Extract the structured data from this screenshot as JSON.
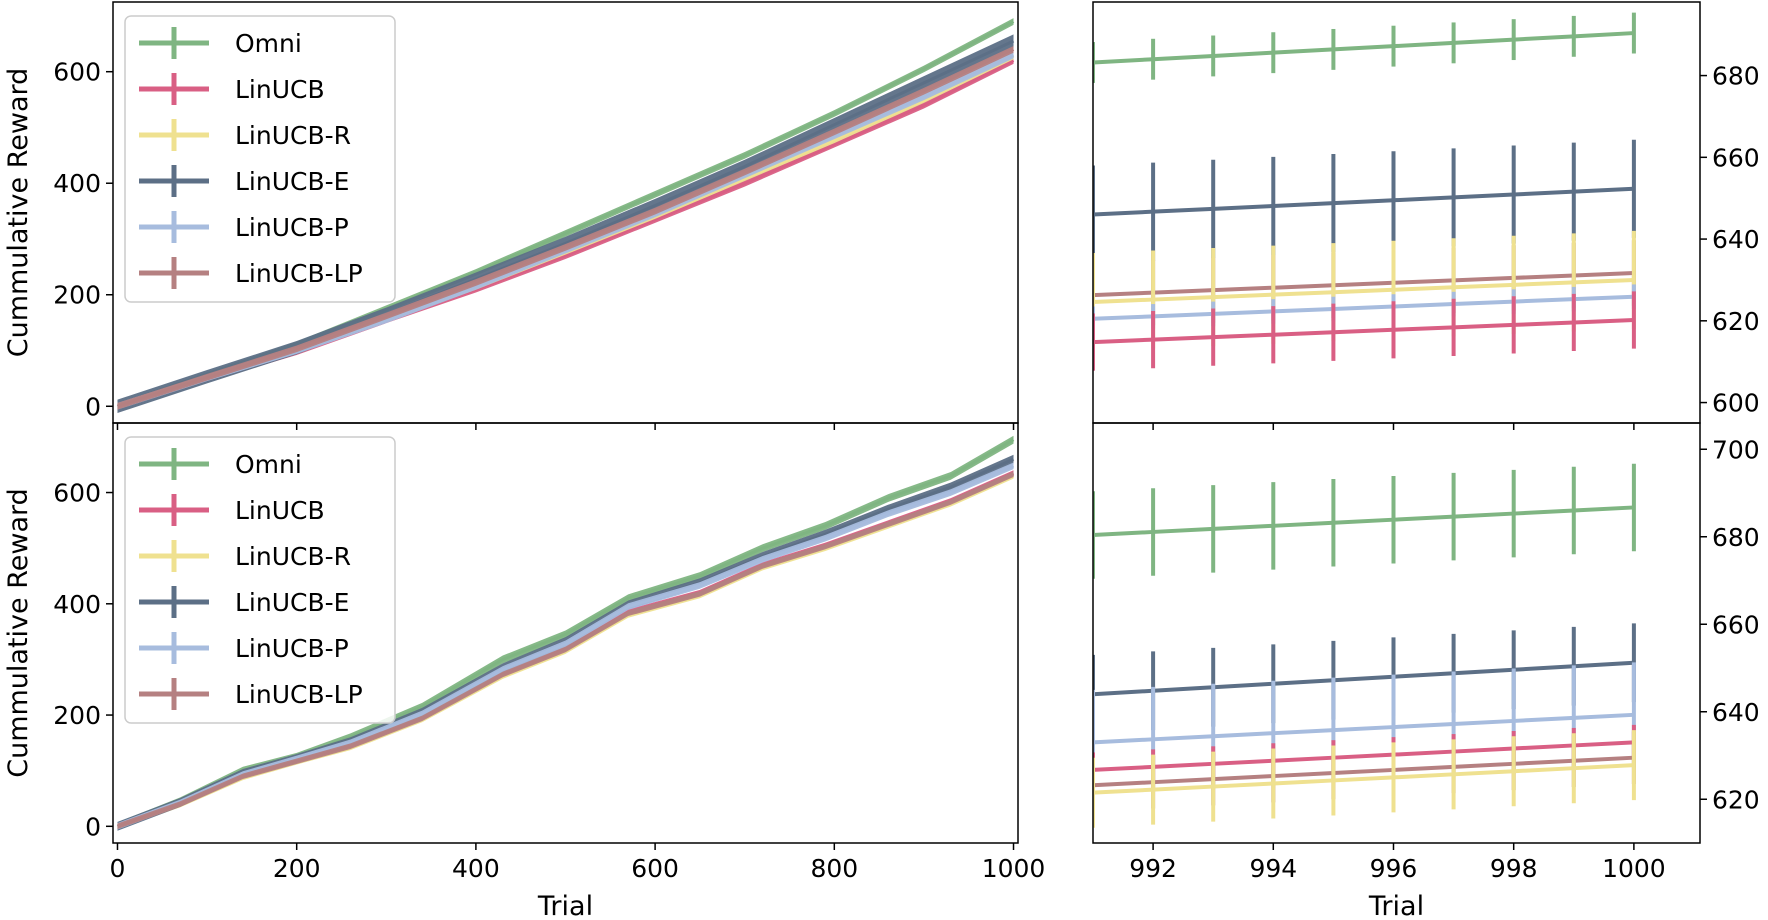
{
  "colors": {
    "omni": "#7fb582",
    "linucb": "#d95f84",
    "linucb_r": "#efe190",
    "linucb_e": "#5c6f86",
    "linucb_p": "#a7bcde",
    "linucb_lp": "#b58081"
  },
  "legend": [
    "Omni",
    "LinUCB",
    "LinUCB-R",
    "LinUCB-E",
    "LinUCB-P",
    "LinUCB-LP"
  ],
  "chart_data": [
    {
      "id": "top-left",
      "type": "line",
      "xlabel": "",
      "ylabel": "Cummulative Reward",
      "xlim": [
        -5,
        1005
      ],
      "ylim": [
        -30,
        725
      ],
      "xticks": [
        0,
        200,
        400,
        600,
        800,
        1000
      ],
      "yticks": [
        0,
        200,
        400,
        600
      ],
      "xtick_labels_visible": false,
      "legend_position": "top-left",
      "series": [
        {
          "name": "Omni",
          "key": "omni",
          "x": [
            0,
            100,
            200,
            300,
            400,
            500,
            600,
            700,
            800,
            900,
            1000
          ],
          "y": [
            0,
            55,
            110,
            175,
            240,
            310,
            380,
            450,
            525,
            605,
            690
          ],
          "band": 6
        },
        {
          "name": "LinUCB",
          "key": "linucb",
          "x": [
            0,
            100,
            200,
            300,
            400,
            500,
            600,
            700,
            800,
            900,
            1000
          ],
          "y": [
            0,
            50,
            98,
            155,
            210,
            270,
            335,
            400,
            470,
            540,
            620
          ],
          "band": 6
        },
        {
          "name": "LinUCB-R",
          "key": "linucb_r",
          "x": [
            0,
            100,
            200,
            300,
            400,
            500,
            600,
            700,
            800,
            900,
            1000
          ],
          "y": [
            0,
            51,
            100,
            158,
            215,
            278,
            342,
            410,
            478,
            550,
            628
          ],
          "band": 6
        },
        {
          "name": "LinUCB-E",
          "key": "linucb_e",
          "x": [
            0,
            100,
            200,
            300,
            400,
            500,
            600,
            700,
            800,
            900,
            1000
          ],
          "y": [
            0,
            53,
            105,
            165,
            228,
            292,
            360,
            430,
            505,
            580,
            655
          ],
          "band": 12
        },
        {
          "name": "LinUCB-P",
          "key": "linucb_p",
          "x": [
            0,
            100,
            200,
            300,
            400,
            500,
            600,
            700,
            800,
            900,
            1000
          ],
          "y": [
            0,
            51,
            100,
            155,
            215,
            280,
            345,
            415,
            485,
            555,
            630
          ],
          "band": 6
        },
        {
          "name": "LinUCB-LP",
          "key": "linucb_lp",
          "x": [
            0,
            100,
            200,
            300,
            400,
            500,
            600,
            700,
            800,
            900,
            1000
          ],
          "y": [
            0,
            52,
            103,
            162,
            222,
            285,
            350,
            420,
            492,
            565,
            640
          ],
          "band": 6
        }
      ]
    },
    {
      "id": "top-right",
      "type": "line",
      "xlabel": "",
      "ylabel": "",
      "xlim": [
        991,
        1001.1
      ],
      "ylim": [
        595,
        698
      ],
      "xticks": [
        992,
        994,
        996,
        998,
        1000
      ],
      "yticks": [
        600,
        620,
        640,
        660,
        680
      ],
      "xtick_labels_visible": false,
      "yaxis_side": "right",
      "series": [
        {
          "name": "Omni",
          "key": "omni",
          "x": [
            991,
            992,
            993,
            994,
            995,
            996,
            997,
            998,
            999,
            1000
          ],
          "y": [
            683.2,
            684.0,
            684.8,
            685.6,
            686.4,
            687.2,
            688.0,
            688.8,
            689.6,
            690.4
          ],
          "err": 5
        },
        {
          "name": "LinUCB-E",
          "key": "linucb_e",
          "x": [
            991,
            992,
            993,
            994,
            995,
            996,
            997,
            998,
            999,
            1000
          ],
          "y": [
            646.0,
            646.7,
            647.4,
            648.1,
            648.8,
            649.5,
            650.2,
            650.9,
            651.6,
            652.3
          ],
          "err": 12
        },
        {
          "name": "LinUCB-LP",
          "key": "linucb_lp",
          "x": [
            991,
            992,
            993,
            994,
            995,
            996,
            997,
            998,
            999,
            1000
          ],
          "y": [
            626.3,
            626.9,
            627.5,
            628.1,
            628.7,
            629.3,
            629.9,
            630.5,
            631.1,
            631.7
          ],
          "err": 8
        },
        {
          "name": "LinUCB-R",
          "key": "linucb_r",
          "x": [
            991,
            992,
            993,
            994,
            995,
            996,
            997,
            998,
            999,
            1000
          ],
          "y": [
            624.6,
            625.2,
            625.8,
            626.4,
            627.0,
            627.6,
            628.2,
            628.8,
            629.4,
            630.0
          ],
          "err": 12
        },
        {
          "name": "LinUCB-P",
          "key": "linucb_p",
          "x": [
            991,
            992,
            993,
            994,
            995,
            996,
            997,
            998,
            999,
            1000
          ],
          "y": [
            620.5,
            621.1,
            621.7,
            622.3,
            622.9,
            623.5,
            624.1,
            624.7,
            625.3,
            625.9
          ],
          "err": 3
        },
        {
          "name": "LinUCB",
          "key": "linucb",
          "x": [
            991,
            992,
            993,
            994,
            995,
            996,
            997,
            998,
            999,
            1000
          ],
          "y": [
            614.8,
            615.4,
            616.0,
            616.6,
            617.2,
            617.8,
            618.4,
            619.0,
            619.6,
            620.2
          ],
          "err": 7
        }
      ]
    },
    {
      "id": "bottom-left",
      "type": "line",
      "xlabel": "Trial",
      "ylabel": "Cummulative Reward",
      "xlim": [
        -5,
        1005
      ],
      "ylim": [
        -30,
        725
      ],
      "xticks": [
        0,
        200,
        400,
        600,
        800,
        1000
      ],
      "yticks": [
        0,
        200,
        400,
        600
      ],
      "xtick_labels_visible": true,
      "legend_position": "top-left",
      "series": [
        {
          "name": "Omni",
          "key": "omni",
          "x": [
            0,
            70,
            140,
            200,
            260,
            340,
            430,
            500,
            570,
            650,
            720,
            790,
            860,
            930,
            1000
          ],
          "y": [
            0,
            45,
            100,
            125,
            160,
            215,
            300,
            345,
            410,
            450,
            500,
            540,
            590,
            630,
            695
          ],
          "band": 7
        },
        {
          "name": "LinUCB",
          "key": "linucb",
          "x": [
            0,
            70,
            140,
            200,
            260,
            340,
            430,
            500,
            570,
            650,
            720,
            790,
            860,
            930,
            1000
          ],
          "y": [
            0,
            40,
            90,
            118,
            145,
            195,
            275,
            320,
            385,
            420,
            470,
            505,
            545,
            585,
            635
          ],
          "band": 5
        },
        {
          "name": "LinUCB-R",
          "key": "linucb_r",
          "x": [
            0,
            70,
            140,
            200,
            260,
            340,
            430,
            500,
            570,
            650,
            720,
            790,
            860,
            930,
            1000
          ],
          "y": [
            0,
            39,
            88,
            116,
            142,
            192,
            270,
            315,
            380,
            415,
            465,
            500,
            540,
            580,
            630
          ],
          "band": 5
        },
        {
          "name": "LinUCB-E",
          "key": "linucb_e",
          "x": [
            0,
            70,
            140,
            200,
            260,
            340,
            430,
            500,
            570,
            650,
            720,
            790,
            860,
            930,
            1000
          ],
          "y": [
            0,
            43,
            95,
            122,
            152,
            205,
            285,
            332,
            398,
            438,
            485,
            525,
            570,
            610,
            660
          ],
          "band": 8
        },
        {
          "name": "LinUCB-P",
          "key": "linucb_p",
          "x": [
            0,
            70,
            140,
            200,
            260,
            340,
            430,
            500,
            570,
            650,
            720,
            790,
            860,
            930,
            1000
          ],
          "y": [
            0,
            42,
            93,
            121,
            150,
            202,
            282,
            328,
            395,
            433,
            480,
            518,
            562,
            600,
            648
          ],
          "band": 6
        },
        {
          "name": "LinUCB-LP",
          "key": "linucb_lp",
          "x": [
            0,
            70,
            140,
            200,
            260,
            340,
            430,
            500,
            570,
            650,
            720,
            790,
            860,
            930,
            1000
          ],
          "y": [
            0,
            40,
            90,
            117,
            144,
            194,
            273,
            318,
            383,
            418,
            468,
            503,
            543,
            583,
            633
          ],
          "band": 5
        }
      ]
    },
    {
      "id": "bottom-right",
      "type": "line",
      "xlabel": "Trial",
      "ylabel": "",
      "xlim": [
        991,
        1001.1
      ],
      "ylim": [
        610,
        706
      ],
      "xticks": [
        992,
        994,
        996,
        998,
        1000
      ],
      "yticks": [
        620,
        640,
        660,
        680,
        700
      ],
      "xtick_labels_visible": true,
      "yaxis_side": "right",
      "series": [
        {
          "name": "Omni",
          "key": "omni",
          "x": [
            991,
            992,
            993,
            994,
            995,
            996,
            997,
            998,
            999,
            1000
          ],
          "y": [
            680.4,
            681.1,
            681.8,
            682.5,
            683.2,
            683.9,
            684.6,
            685.3,
            686.0,
            686.7
          ],
          "err": 10
        },
        {
          "name": "LinUCB-E",
          "key": "linucb_e",
          "x": [
            991,
            992,
            993,
            994,
            995,
            996,
            997,
            998,
            999,
            1000
          ],
          "y": [
            644.0,
            644.8,
            645.6,
            646.4,
            647.2,
            648.0,
            648.8,
            649.6,
            650.4,
            651.2
          ],
          "err": 9
        },
        {
          "name": "LinUCB-P",
          "key": "linucb_p",
          "x": [
            991,
            992,
            993,
            994,
            995,
            996,
            997,
            998,
            999,
            1000
          ],
          "y": [
            633.0,
            633.7,
            634.4,
            635.1,
            635.8,
            636.5,
            637.2,
            637.9,
            638.6,
            639.3
          ],
          "err": 12
        },
        {
          "name": "LinUCB",
          "key": "linucb",
          "x": [
            991,
            992,
            993,
            994,
            995,
            996,
            997,
            998,
            999,
            1000
          ],
          "y": [
            626.7,
            627.4,
            628.1,
            628.8,
            629.5,
            630.2,
            630.9,
            631.6,
            632.3,
            633.0
          ],
          "err": 4
        },
        {
          "name": "LinUCB-LP",
          "key": "linucb_lp",
          "x": [
            991,
            992,
            993,
            994,
            995,
            996,
            997,
            998,
            999,
            1000
          ],
          "y": [
            623.2,
            623.9,
            624.6,
            625.3,
            626.0,
            626.7,
            627.4,
            628.1,
            628.8,
            629.5
          ],
          "err": 6
        },
        {
          "name": "LinUCB-R",
          "key": "linucb_r",
          "x": [
            991,
            992,
            993,
            994,
            995,
            996,
            997,
            998,
            999,
            1000
          ],
          "y": [
            621.5,
            622.2,
            622.9,
            623.6,
            624.3,
            625.0,
            625.7,
            626.4,
            627.1,
            627.8
          ],
          "err": 8
        }
      ]
    }
  ]
}
